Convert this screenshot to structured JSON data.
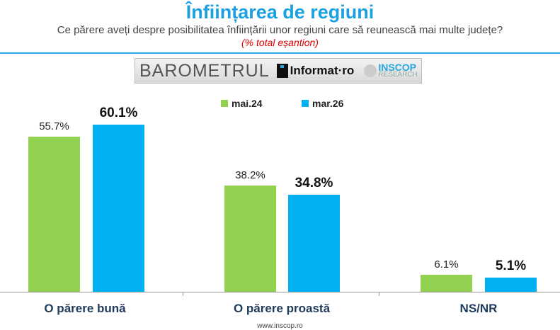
{
  "header": {
    "title": "Înființarea de regiuni",
    "subtitle": "Ce părere aveți despre posibilitatea înființării unor regiuni care să reunească mai multe județe?",
    "note": "(% total eșantion)"
  },
  "banner": {
    "barometrul": "BAROMETRUL",
    "informat": "Informat·ro",
    "inscop": "INSCOP",
    "research": "RESEARCH"
  },
  "chart_data": {
    "type": "bar",
    "title": "Înființarea de regiuni",
    "categories": [
      "O părere bună",
      "O părere proastă",
      "NS/NR"
    ],
    "series": [
      {
        "name": "mai.24",
        "color": "#92d050",
        "values": [
          55.7,
          38.2,
          6.1
        ],
        "labels": [
          "55.7%",
          "38.2%",
          "6.1%"
        ]
      },
      {
        "name": "mar.26",
        "color": "#00b0f0",
        "values": [
          60.1,
          34.8,
          5.1
        ],
        "labels": [
          "60.1%",
          "34.8%",
          "5.1%"
        ]
      }
    ],
    "legend": "top-center",
    "grid": false
  },
  "footer": "www.inscop.ro"
}
